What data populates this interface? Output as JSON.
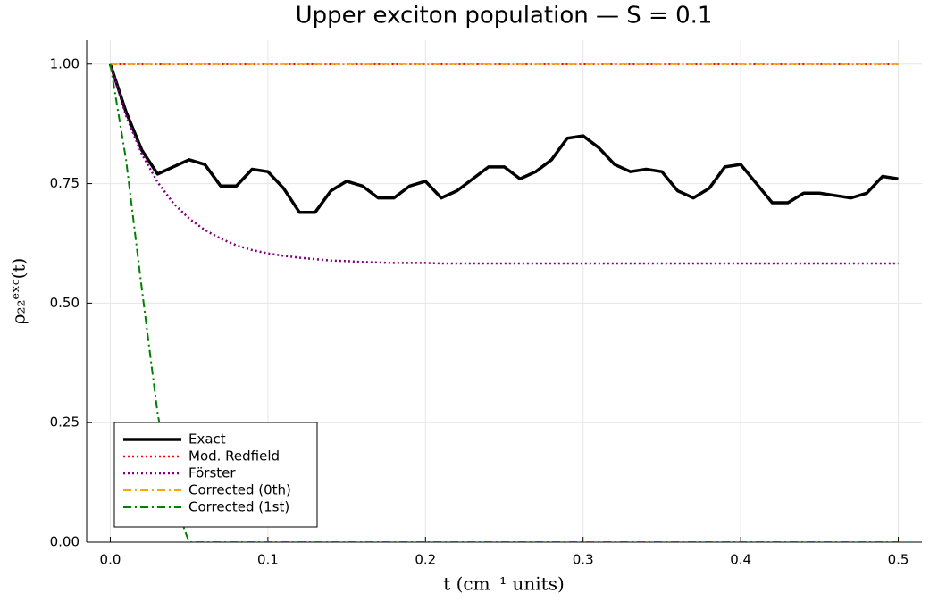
{
  "chart_data": {
    "type": "line",
    "title": "Upper exciton population — S = 0.1",
    "x_label": "t (cm⁻¹ units)",
    "y_label": "ρ₂₂ᵉˣᶜ(t)",
    "x": [
      0,
      0.01,
      0.02,
      0.03,
      0.04,
      0.05,
      0.06,
      0.07,
      0.08,
      0.09,
      0.1,
      0.11,
      0.12,
      0.13,
      0.14,
      0.15,
      0.16,
      0.17,
      0.18,
      0.19,
      0.2,
      0.21,
      0.22,
      0.23,
      0.24,
      0.25,
      0.26,
      0.27,
      0.28,
      0.29,
      0.3,
      0.31,
      0.32,
      0.33,
      0.34,
      0.35,
      0.36,
      0.37,
      0.38,
      0.39,
      0.4,
      0.41,
      0.42,
      0.43,
      0.44,
      0.45,
      0.46,
      0.47,
      0.48,
      0.49,
      0.5
    ],
    "series": [
      {
        "name": "Exact",
        "color": "#000000",
        "dash": "solid",
        "width": 3.5,
        "values": [
          1.0,
          0.9,
          0.82,
          0.77,
          0.785,
          0.8,
          0.79,
          0.745,
          0.745,
          0.78,
          0.775,
          0.74,
          0.69,
          0.69,
          0.735,
          0.755,
          0.745,
          0.72,
          0.72,
          0.745,
          0.755,
          0.72,
          0.735,
          0.76,
          0.785,
          0.785,
          0.76,
          0.775,
          0.8,
          0.845,
          0.85,
          0.825,
          0.79,
          0.775,
          0.78,
          0.775,
          0.735,
          0.72,
          0.74,
          0.785,
          0.79,
          0.75,
          0.71,
          0.71,
          0.73,
          0.73,
          0.725,
          0.72,
          0.73,
          0.765,
          0.76
        ]
      },
      {
        "name": "Mod. Redfield",
        "color": "#ff0000",
        "dash": "dot",
        "width": 2.5,
        "values": [
          1,
          1,
          1,
          1,
          1,
          1,
          1,
          1,
          1,
          1,
          1,
          1,
          1,
          1,
          1,
          1,
          1,
          1,
          1,
          1,
          1,
          1,
          1,
          1,
          1,
          1,
          1,
          1,
          1,
          1,
          1,
          1,
          1,
          1,
          1,
          1,
          1,
          1,
          1,
          1,
          1,
          1,
          1,
          1,
          1,
          1,
          1,
          1,
          1,
          1,
          1
        ]
      },
      {
        "name": "Förster",
        "color": "#800080",
        "dash": "dot",
        "width": 2.5,
        "values": [
          1.0,
          0.892,
          0.812,
          0.753,
          0.709,
          0.677,
          0.653,
          0.635,
          0.621,
          0.611,
          0.604,
          0.599,
          0.595,
          0.592,
          0.589,
          0.588,
          0.586,
          0.585,
          0.584,
          0.584,
          0.584,
          0.583,
          0.583,
          0.583,
          0.583,
          0.583,
          0.583,
          0.583,
          0.583,
          0.583,
          0.583,
          0.583,
          0.583,
          0.583,
          0.583,
          0.583,
          0.583,
          0.583,
          0.583,
          0.583,
          0.583,
          0.583,
          0.583,
          0.583,
          0.583,
          0.583,
          0.583,
          0.583,
          0.583,
          0.583,
          0.583
        ]
      },
      {
        "name": "Corrected (0th)",
        "color": "#ffa500",
        "dash": "dashdot",
        "width": 2,
        "values": [
          1,
          1,
          1,
          1,
          1,
          1,
          1,
          1,
          1,
          1,
          1,
          1,
          1,
          1,
          1,
          1,
          1,
          1,
          1,
          1,
          1,
          1,
          1,
          1,
          1,
          1,
          1,
          1,
          1,
          1,
          1,
          1,
          1,
          1,
          1,
          1,
          1,
          1,
          1,
          1,
          1,
          1,
          1,
          1,
          1,
          1,
          1,
          1,
          1,
          1,
          1
        ]
      },
      {
        "name": "Corrected (1st)",
        "color": "#008000",
        "dash": "dashdot",
        "width": 2,
        "values": [
          1.0,
          0.8,
          0.53,
          0.27,
          0.09,
          0,
          0,
          0,
          0,
          0,
          0,
          0,
          0,
          0,
          0,
          0,
          0,
          0,
          0,
          0,
          0,
          0,
          0,
          0,
          0,
          0,
          0,
          0,
          0,
          0,
          0,
          0,
          0,
          0,
          0,
          0,
          0,
          0,
          0,
          0,
          0,
          0,
          0,
          0,
          0,
          0,
          0,
          0,
          0,
          0,
          0
        ]
      }
    ],
    "xlim": [
      -0.015,
      0.515
    ],
    "ylim": [
      0,
      1.05
    ],
    "xticks": [
      {
        "value": 0,
        "label": "0.0"
      },
      0.1,
      0.2,
      0.3,
      0.4,
      0.5
    ],
    "yticks": [
      {
        "value": 0,
        "label": "0.00"
      },
      {
        "value": 0.25,
        "label": "0.25"
      },
      {
        "value": 0.5,
        "label": "0.50"
      },
      {
        "value": 0.75,
        "label": "0.75"
      },
      {
        "value": 1,
        "label": "1.00"
      }
    ],
    "grid": true,
    "legend": "lower left"
  }
}
